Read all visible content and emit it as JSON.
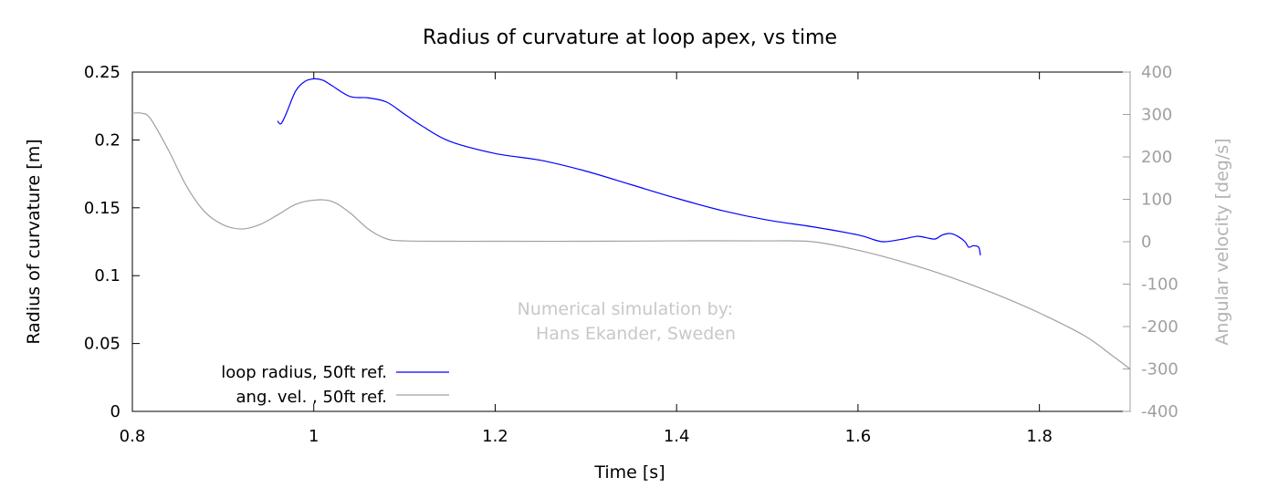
{
  "chart_data": {
    "type": "line",
    "title": "Radius of curvature at loop apex, vs time",
    "xlabel": "Time [s]",
    "ylabel": "Radius of curvature [m]",
    "y2label": "Angular velocity [deg/s]",
    "xlim": [
      0.8,
      1.9
    ],
    "ylim": [
      0,
      0.25
    ],
    "y2lim": [
      -400,
      400
    ],
    "x_ticks": [
      "0.8",
      "1",
      "1.2",
      "1.4",
      "1.6",
      "1.8"
    ],
    "y_ticks": [
      "0",
      "0.05",
      "0.1",
      "0.15",
      "0.2",
      "0.25"
    ],
    "y2_ticks": [
      "-400",
      "-300",
      "-200",
      "-100",
      "0",
      "100",
      "200",
      "300",
      "400"
    ],
    "grid": false,
    "legend_position": "bottom-left",
    "annotation": [
      "Numerical simulation by:",
      "Hans Ekander, Sweden"
    ],
    "colors": {
      "radius": "#0000ff",
      "angvel": "#a0a0a0",
      "y2_axis": "#a0a0a0"
    },
    "series": [
      {
        "name": "loop radius, 50ft ref.",
        "axis": "y",
        "x": [
          0.96,
          0.964,
          0.97,
          0.98,
          0.99,
          1.0,
          1.01,
          1.02,
          1.04,
          1.06,
          1.08,
          1.1,
          1.12,
          1.15,
          1.2,
          1.25,
          1.3,
          1.35,
          1.4,
          1.45,
          1.5,
          1.55,
          1.6,
          1.62,
          1.63,
          1.65,
          1.665,
          1.675,
          1.685,
          1.693,
          1.702,
          1.71,
          1.718,
          1.722,
          1.727,
          1.733,
          1.735
        ],
        "values": [
          0.214,
          0.212,
          0.22,
          0.236,
          0.243,
          0.245,
          0.244,
          0.24,
          0.232,
          0.231,
          0.228,
          0.219,
          0.21,
          0.199,
          0.19,
          0.185,
          0.177,
          0.167,
          0.157,
          0.148,
          0.141,
          0.136,
          0.13,
          0.126,
          0.125,
          0.127,
          0.129,
          0.128,
          0.127,
          0.13,
          0.131,
          0.129,
          0.125,
          0.121,
          0.122,
          0.121,
          0.115
        ]
      },
      {
        "name": "ang. vel. , 50ft ref.",
        "axis": "y2",
        "x": [
          0.8,
          0.81,
          0.82,
          0.84,
          0.86,
          0.88,
          0.9,
          0.92,
          0.94,
          0.96,
          0.98,
          1.0,
          1.02,
          1.04,
          1.06,
          1.08,
          1.1,
          1.15,
          1.2,
          1.3,
          1.4,
          1.5,
          1.55,
          1.6,
          1.65,
          1.7,
          1.75,
          1.8,
          1.85,
          1.88,
          1.9
        ],
        "values": [
          303,
          303,
          290,
          215,
          130,
          70,
          40,
          30,
          40,
          63,
          88,
          98,
          95,
          68,
          30,
          7,
          2,
          1,
          1,
          1,
          2,
          2,
          0,
          -20,
          -48,
          -82,
          -122,
          -168,
          -222,
          -268,
          -300
        ]
      }
    ]
  }
}
